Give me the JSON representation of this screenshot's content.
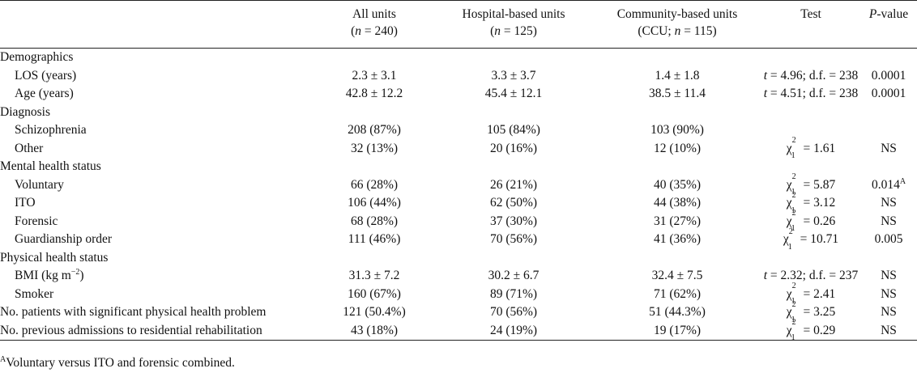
{
  "headers": {
    "col1_line1": "All units",
    "col1_line2": "(n = 240)",
    "col2_line1": "Hospital-based units",
    "col2_line2": "(n = 125)",
    "col3_line1": "Community-based units",
    "col3_line2": "(CCU; n = 115)",
    "col4": "Test",
    "col5": "P-value"
  },
  "rows": [
    {
      "type": "section",
      "label": "Demographics"
    },
    {
      "type": "row",
      "label": "LOS (years)",
      "all": "2.3 ± 3.1",
      "hosp": "3.3 ± 3.7",
      "comm": "1.4 ± 1.8",
      "test": "t = 4.96; d.f. = 238",
      "p": "0.0001"
    },
    {
      "type": "row",
      "label": "Age (years)",
      "all": "42.8 ± 12.2",
      "hosp": "45.4 ± 12.1",
      "comm": "38.5 ± 11.4",
      "test": "t = 4.51; d.f. = 238",
      "p": "0.0001"
    },
    {
      "type": "section",
      "label": "Diagnosis"
    },
    {
      "type": "row",
      "label": "Schizophrenia",
      "all": "208 (87%)",
      "hosp": "105 (84%)",
      "comm": "103 (90%)",
      "test": "",
      "p": ""
    },
    {
      "type": "row",
      "label": "Other",
      "all": "32 (13%)",
      "hosp": "20 (16%)",
      "comm": "12 (10%)",
      "test": "χ²₁ = 1.61",
      "p": "NS"
    },
    {
      "type": "section",
      "label": "Mental health status"
    },
    {
      "type": "row",
      "label": "Voluntary",
      "all": "66 (28%)",
      "hosp": "26 (21%)",
      "comm": "40 (35%)",
      "test": "χ²₁ = 5.87",
      "p": "0.014ᴬ"
    },
    {
      "type": "row",
      "label": "ITO",
      "all": "106 (44%)",
      "hosp": "62 (50%)",
      "comm": "44 (38%)",
      "test": "χ²₁ = 3.12",
      "p": "NS"
    },
    {
      "type": "row",
      "label": "Forensic",
      "all": "68 (28%)",
      "hosp": "37 (30%)",
      "comm": "31 (27%)",
      "test": "χ²₁ = 0.26",
      "p": "NS"
    },
    {
      "type": "row",
      "label": "Guardianship order",
      "all": "111 (46%)",
      "hosp": "70 (56%)",
      "comm": "41 (36%)",
      "test": "χ²₁ = 10.71",
      "p": "0.005"
    },
    {
      "type": "section",
      "label": "Physical health status"
    },
    {
      "type": "row",
      "label": "BMI (kg m⁻²)",
      "all": "31.3 ± 7.2",
      "hosp": "30.2 ± 6.7",
      "comm": "32.4 ± 7.5",
      "test": "t = 2.32; d.f. = 237",
      "p": "NS"
    },
    {
      "type": "row",
      "label": "Smoker",
      "all": "160 (67%)",
      "hosp": "89 (71%)",
      "comm": "71 (62%)",
      "test": "χ²₁ = 2.41",
      "p": "NS"
    },
    {
      "type": "toprow",
      "label": "No. patients with significant physical health problem",
      "all": "121 (50.4%)",
      "hosp": "70 (56%)",
      "comm": "51 (44.3%)",
      "test": "χ²₁ = 3.25",
      "p": "NS"
    },
    {
      "type": "toprow",
      "label": "No. previous admissions to residential rehabilitation",
      "all": "43 (18%)",
      "hosp": "24 (19%)",
      "comm": "19 (17%)",
      "test": "χ²₁ = 0.29",
      "p": "NS"
    }
  ],
  "footnote": "ᴬVoluntary versus ITO and forensic combined."
}
